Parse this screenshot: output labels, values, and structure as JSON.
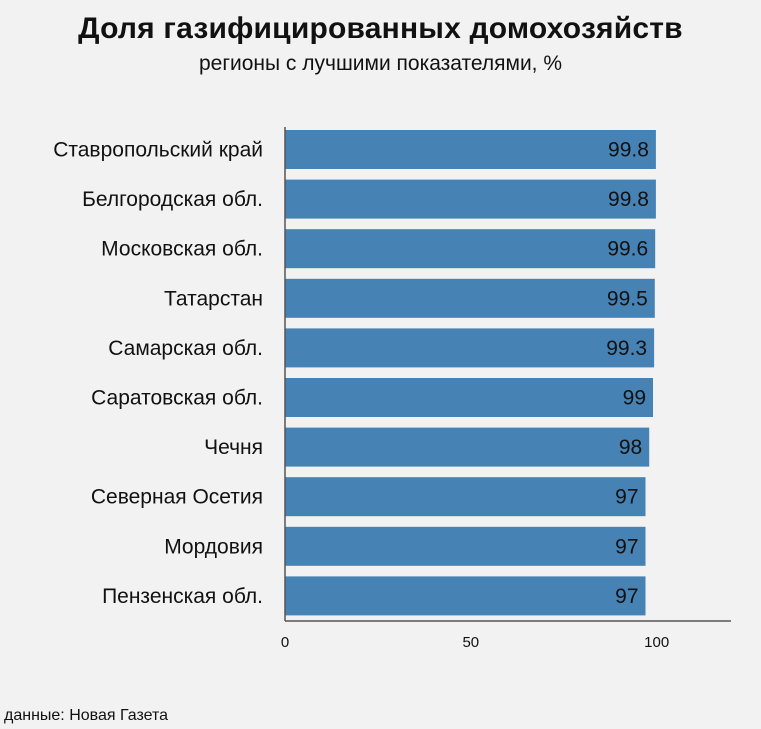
{
  "title": "Доля газифицированных домохозяйств",
  "subtitle": "регионы с лучшими показателями, %",
  "source": "данные: Новая Газета",
  "chart_data": {
    "type": "bar",
    "orientation": "horizontal",
    "categories": [
      "Ставропольский край",
      "Белгородская обл.",
      "Московская обл.",
      "Татарстан",
      "Самарская обл.",
      "Саратовская обл.",
      "Чечня",
      "Северная Осетия",
      "Мордовия",
      "Пензенская обл."
    ],
    "values": [
      99.8,
      99.8,
      99.6,
      99.5,
      99.3,
      99,
      98,
      97,
      97,
      97
    ],
    "value_labels": [
      "99.8",
      "99.8",
      "99.6",
      "99.5",
      "99.3",
      "99",
      "98",
      "97",
      "97",
      "97"
    ],
    "xlim": [
      0,
      120
    ],
    "xticks": [
      0,
      50,
      100
    ],
    "grid": false,
    "bar_color": "#4682b4"
  }
}
